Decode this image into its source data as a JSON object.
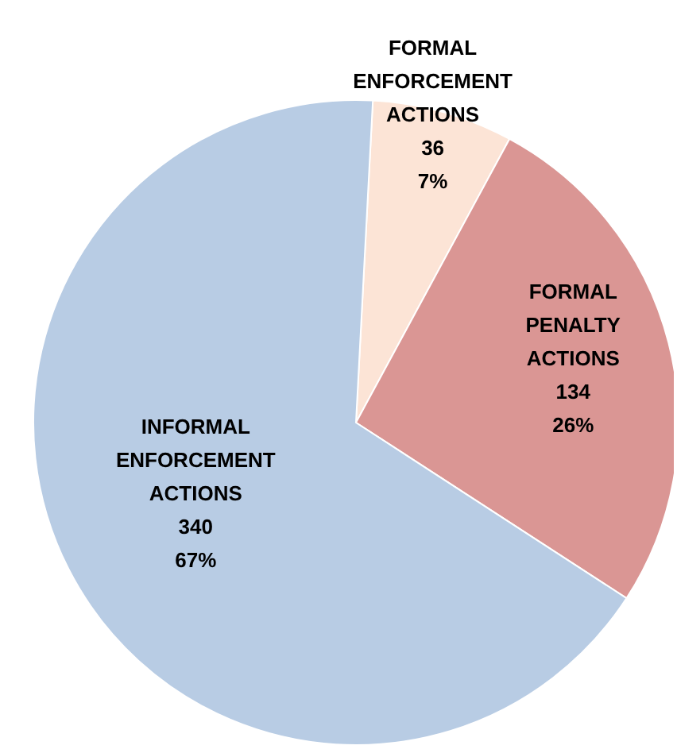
{
  "chart_data": {
    "type": "pie",
    "categories": [
      "FORMAL ENFORCEMENT ACTIONS",
      "FORMAL PENALTY ACTIONS",
      "INFORMAL ENFORCEMENT ACTIONS"
    ],
    "values": [
      36,
      134,
      340
    ],
    "colors": [
      "#fce4d6",
      "#da9694",
      "#b8cce4"
    ],
    "value_labels": [
      "36\n7%",
      "134\n26%",
      "340\n67%"
    ],
    "legend": false
  }
}
